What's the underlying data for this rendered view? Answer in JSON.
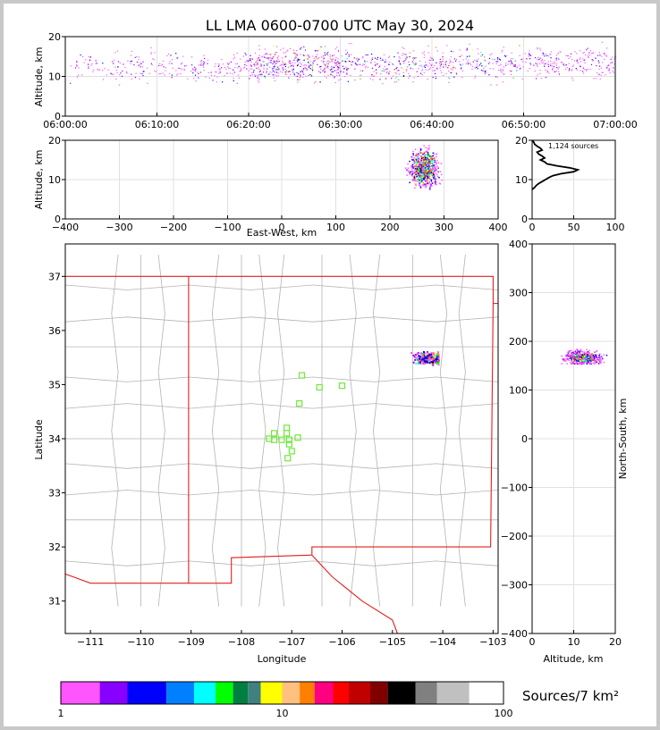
{
  "title": "LL LMA 0600-0700 UTC May 30, 2024",
  "chart_data": [
    {
      "panel": "altitude-vs-time",
      "type": "scatter",
      "title": "LL LMA 0600-0700 UTC May 30, 2024",
      "xlabel": "",
      "ylabel": "Altitude, km",
      "xlim": [
        "06:00:00",
        "07:00:00"
      ],
      "ylim": [
        0,
        20
      ],
      "x_ticks": [
        "06:00:00",
        "06:10:00",
        "06:20:00",
        "06:30:00",
        "06:40:00",
        "06:50:00",
        "07:00:00"
      ],
      "y_ticks": [
        "0",
        "10",
        "20"
      ],
      "grid": true,
      "clusters": [
        {
          "t_start_min": 0,
          "t_end_min": 5,
          "alt_min": 8,
          "alt_max": 19,
          "density": "low"
        },
        {
          "t_start_min": 5,
          "t_end_min": 20,
          "alt_min": 8,
          "alt_max": 19,
          "density": "medium"
        },
        {
          "t_start_min": 20,
          "t_end_min": 30,
          "alt_min": 8,
          "alt_max": 20,
          "density": "high"
        },
        {
          "t_start_min": 30,
          "t_end_min": 50,
          "alt_min": 8,
          "alt_max": 20,
          "density": "high"
        },
        {
          "t_start_min": 50,
          "t_end_min": 60,
          "alt_min": 9,
          "alt_max": 20,
          "density": "medium"
        }
      ]
    },
    {
      "panel": "altitude-vs-east-west",
      "type": "scatter",
      "xlabel": "East-West, km",
      "ylabel": "Altitude, km",
      "xlim": [
        -400,
        400
      ],
      "ylim": [
        0,
        20
      ],
      "x_ticks": [
        "−400",
        "−300",
        "−200",
        "−100",
        "0",
        "100",
        "200",
        "300",
        "400"
      ],
      "y_ticks": [
        "0",
        "10",
        "20"
      ],
      "grid": true,
      "clusters": [
        {
          "x_min": 222,
          "x_max": 295,
          "alt_min": 7,
          "alt_max": 20,
          "x_center": 262,
          "alt_center": 13
        }
      ]
    },
    {
      "panel": "altitude-histogram",
      "type": "line",
      "annotation": "1,124 sources",
      "xlim": [
        0,
        100
      ],
      "ylim": [
        0,
        20
      ],
      "x_ticks": [
        "0",
        "50",
        "100"
      ],
      "y_ticks": [
        "0",
        "10",
        "20"
      ],
      "grid": true,
      "profile": [
        {
          "alt": 7.5,
          "count": 0
        },
        {
          "alt": 8.0,
          "count": 3
        },
        {
          "alt": 8.5,
          "count": 5
        },
        {
          "alt": 9.0,
          "count": 8
        },
        {
          "alt": 9.5,
          "count": 12
        },
        {
          "alt": 10.0,
          "count": 16
        },
        {
          "alt": 10.5,
          "count": 20
        },
        {
          "alt": 11.0,
          "count": 25
        },
        {
          "alt": 11.5,
          "count": 35
        },
        {
          "alt": 12.0,
          "count": 50
        },
        {
          "alt": 12.5,
          "count": 55
        },
        {
          "alt": 13.0,
          "count": 45
        },
        {
          "alt": 13.5,
          "count": 30
        },
        {
          "alt": 14.0,
          "count": 18
        },
        {
          "alt": 14.5,
          "count": 15
        },
        {
          "alt": 15.0,
          "count": 10
        },
        {
          "alt": 15.5,
          "count": 15
        },
        {
          "alt": 16.0,
          "count": 12
        },
        {
          "alt": 16.5,
          "count": 8
        },
        {
          "alt": 17.0,
          "count": 6
        },
        {
          "alt": 17.5,
          "count": 12
        },
        {
          "alt": 18.0,
          "count": 10
        },
        {
          "alt": 18.5,
          "count": 6
        },
        {
          "alt": 19.0,
          "count": 3
        },
        {
          "alt": 19.5,
          "count": 2
        },
        {
          "alt": 20.0,
          "count": 0
        }
      ]
    },
    {
      "panel": "plan-view-map",
      "type": "scatter",
      "xlabel": "Longitude",
      "ylabel": "Latitude",
      "xlim": [
        -111.5,
        -102.9
      ],
      "ylim": [
        30.4,
        37.6
      ],
      "x_ticks": [
        "−111",
        "−110",
        "−109",
        "−108",
        "−107",
        "−106",
        "−105",
        "−104",
        "−103"
      ],
      "y_ticks": [
        "31",
        "32",
        "33",
        "34",
        "35",
        "36",
        "37"
      ],
      "source_cluster": {
        "lon_min": -104.9,
        "lon_max": -104.1,
        "lat_min": 35.35,
        "lat_max": 35.75,
        "lon_center": -104.3,
        "lat_center": 35.5
      },
      "stations": [
        {
          "lon": -106.8,
          "lat": 35.17
        },
        {
          "lon": -106.45,
          "lat": 34.95
        },
        {
          "lon": -106.0,
          "lat": 34.98
        },
        {
          "lon": -106.85,
          "lat": 34.65
        },
        {
          "lon": -107.1,
          "lat": 34.2
        },
        {
          "lon": -107.35,
          "lat": 34.1
        },
        {
          "lon": -107.1,
          "lat": 34.1
        },
        {
          "lon": -107.45,
          "lat": 34.0
        },
        {
          "lon": -107.35,
          "lat": 33.98
        },
        {
          "lon": -107.2,
          "lat": 33.98
        },
        {
          "lon": -107.05,
          "lat": 33.98
        },
        {
          "lon": -106.88,
          "lat": 34.02
        },
        {
          "lon": -107.05,
          "lat": 33.9
        },
        {
          "lon": -107.0,
          "lat": 33.77
        },
        {
          "lon": -107.08,
          "lat": 33.64
        }
      ]
    },
    {
      "panel": "north-south-vs-altitude",
      "type": "scatter",
      "xlabel": "Altitude, km",
      "ylabel": "North-South, km",
      "xlim": [
        0,
        20
      ],
      "ylim": [
        -400,
        400
      ],
      "x_ticks": [
        "0",
        "10",
        "20"
      ],
      "y_ticks": [
        "−400",
        "−300",
        "−200",
        "−100",
        "0",
        "100",
        "200",
        "300",
        "400"
      ],
      "grid": true,
      "clusters": [
        {
          "alt_min": 7,
          "alt_max": 20,
          "ns_min": 155,
          "ns_max": 195,
          "alt_center": 12,
          "ns_center": 168
        }
      ]
    },
    {
      "panel": "colorbar",
      "type": "heatmap",
      "label": "Sources/7 km²",
      "scale": "log",
      "range": [
        1,
        100
      ],
      "tick_labels": [
        "1",
        "10",
        "100"
      ],
      "colors": [
        "#ff55ff",
        "#8800ff",
        "#0000ff",
        "#0080ff",
        "#00ffff",
        "#00ff00",
        "#008040",
        "#408080",
        "#ffff00",
        "#ffc080",
        "#ff8000",
        "#ff0080",
        "#ff0000",
        "#c00000",
        "#800000",
        "#000000",
        "#808080",
        "#c0c0c0",
        "#ffffff"
      ]
    }
  ]
}
